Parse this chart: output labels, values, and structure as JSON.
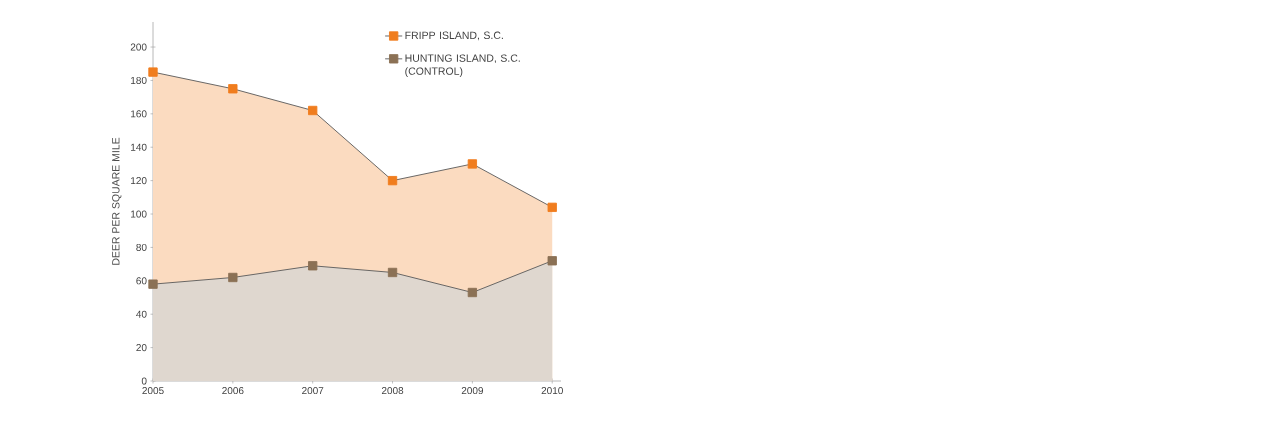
{
  "chart_data": {
    "type": "area",
    "ylabel": "DEER PER SQUARE MILE",
    "categories": [
      "2005",
      "2006",
      "2007",
      "2008",
      "2009",
      "2010"
    ],
    "series": [
      {
        "name": "FRIPP ISLAND, S.C.",
        "color": "#f07d1e",
        "values": [
          185,
          175,
          162,
          120,
          130,
          104
        ]
      },
      {
        "name": "HUNTING ISLAND, S.C. (CONTROL)",
        "color": "#8b7155",
        "values": [
          58,
          62,
          69,
          65,
          53,
          72
        ]
      }
    ],
    "ylim": [
      0,
      215
    ],
    "yticks": [
      0,
      20,
      40,
      60,
      80,
      100,
      120,
      140,
      160,
      180,
      200
    ],
    "marker": "square",
    "legend": "top right"
  }
}
